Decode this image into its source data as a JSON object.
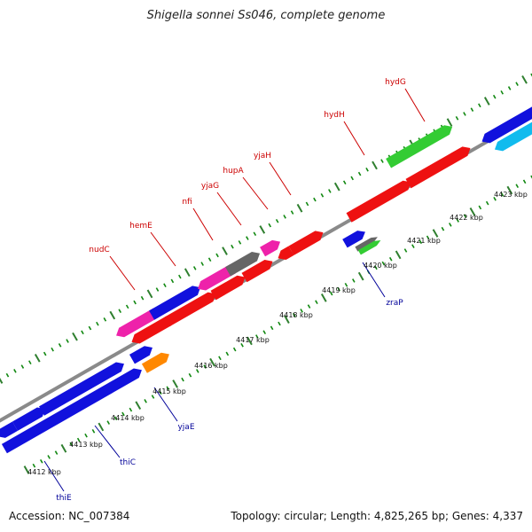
{
  "title": "Shigella sonnei Ss046, complete genome",
  "footer": {
    "accession": "Accession: NC_007384",
    "summary": "Topology: circular; Length: 4,825,265 bp; Genes: 4,337"
  },
  "colors": {
    "backbone": "#8a8a8a",
    "tick_major": "#2f7f2f",
    "tick_minor": "#118811",
    "gene_red": "#ee1111",
    "gene_blue": "#1111dd",
    "gene_green": "#33cc33",
    "gene_magenta": "#ee22aa",
    "gene_gray": "#666666",
    "gene_orange": "#ff8800",
    "gene_cyan": "#11bbee",
    "label_red": "#cc0000",
    "label_blue": "#000099"
  },
  "scale": {
    "unit": "kbp",
    "ticks": [
      "4412 kbp",
      "4413 kbp",
      "4414 kbp",
      "4415 kbp",
      "4416 kbp",
      "4417 kbp",
      "4418 kbp",
      "4419 kbp",
      "4420 kbp",
      "4421 kbp",
      "4422 kbp",
      "4423 kbp"
    ]
  },
  "genes_top": [
    {
      "name": "nudC"
    },
    {
      "name": "hemE"
    },
    {
      "name": "nfi"
    },
    {
      "name": "yjaG"
    },
    {
      "name": "hupA"
    },
    {
      "name": "yjaH"
    },
    {
      "name": "hydH"
    },
    {
      "name": "hydG"
    }
  ],
  "genes_bottom": [
    {
      "name": "thiE"
    },
    {
      "name": "thiC"
    },
    {
      "name": "yjaE"
    },
    {
      "name": "zraP"
    }
  ]
}
